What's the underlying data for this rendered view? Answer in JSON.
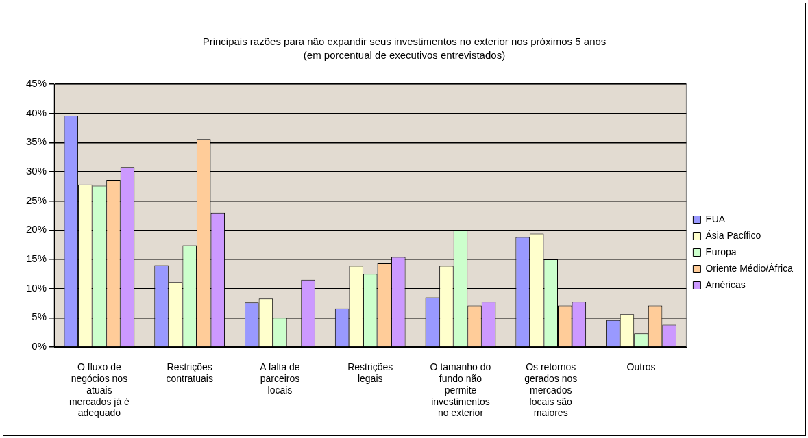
{
  "chart_data": {
    "type": "bar",
    "title": "Principais razões para não expandir seus investimentos no exterior nos próximos 5 anos",
    "subtitle": "(em porcentual de executivos entrevistados)",
    "categories": [
      "O fluxo de negócios nos atuais mercados já é adequado",
      "Restrições contratuais",
      "A falta de parceiros locais",
      "Restrições legais",
      "O tamanho do fundo não permite investimentos no exterior",
      "Os retornos gerados nos mercados locais são maiores",
      "Outros"
    ],
    "series": [
      {
        "name": "EUA",
        "color": "#9999ff",
        "values": [
          39.6,
          14,
          7.6,
          6.6,
          8.5,
          18.8,
          4.6
        ]
      },
      {
        "name": "Ásia Pacífico",
        "color": "#ffffcc",
        "values": [
          27.8,
          11.1,
          8.3,
          13.9,
          13.9,
          19.4,
          5.6
        ]
      },
      {
        "name": "Europa",
        "color": "#ccffcc",
        "values": [
          27.6,
          17.4,
          5,
          12.5,
          20,
          15,
          2.3
        ]
      },
      {
        "name": "Oriente Médio/África",
        "color": "#ffcc99",
        "values": [
          28.6,
          35.6,
          0,
          14.3,
          7.1,
          7.1,
          7.1
        ]
      },
      {
        "name": "Américas",
        "color": "#cc99ff",
        "values": [
          30.8,
          23,
          11.5,
          15.4,
          7.7,
          7.7,
          3.8
        ]
      }
    ],
    "ylim": [
      0,
      45
    ],
    "yticks": [
      {
        "value": 0,
        "label": "0%"
      },
      {
        "value": 5,
        "label": "5%"
      },
      {
        "value": 10,
        "label": "10%"
      },
      {
        "value": 15,
        "label": "15%"
      },
      {
        "value": 20,
        "label": "20%"
      },
      {
        "value": 25,
        "label": "25%"
      },
      {
        "value": 30,
        "label": "30%"
      },
      {
        "value": 35,
        "label": "35%"
      },
      {
        "value": 40,
        "label": "40%"
      },
      {
        "value": 45,
        "label": "45%"
      }
    ],
    "grid": "y",
    "legend": "right"
  }
}
